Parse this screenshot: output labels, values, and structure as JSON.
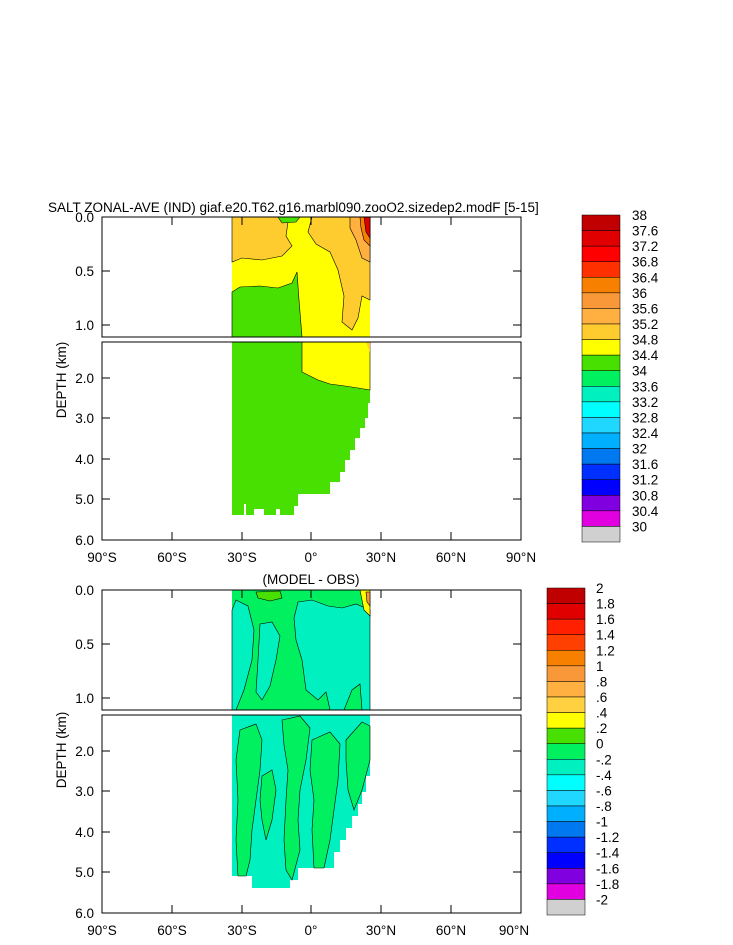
{
  "chart_data": [
    {
      "type": "heatmap",
      "title": "SALT ZONAL-AVE (IND) giaf.e20.T62.g16.marbl090.zooO2.sizedep2.modF [5-15]",
      "ylabel": "DEPTH (km)",
      "x_ticks": [
        "90°S",
        "60°S",
        "30°S",
        "0°",
        "30°N",
        "60°N",
        "90°N"
      ],
      "xlim": [
        -90,
        90
      ],
      "y_ticks_upper": [
        "0.0",
        "0.5",
        "1.0"
      ],
      "y_ticks_lower": [
        "2.0",
        "3.0",
        "4.0",
        "5.0",
        "6.0"
      ],
      "ylim_upper_km": [
        0,
        1.15
      ],
      "ylim_lower_km": [
        1.15,
        6.0
      ],
      "colorbar_labels": [
        "38",
        "37.6",
        "37.2",
        "36.8",
        "36.4",
        "36",
        "35.6",
        "35.2",
        "34.8",
        "34.4",
        "34",
        "33.6",
        "33.2",
        "32.8",
        "32.4",
        "32",
        "31.6",
        "31.2",
        "30.8",
        "30.4",
        "30"
      ]
    },
    {
      "type": "heatmap",
      "title": "(MODEL - OBS)",
      "ylabel": "DEPTH (km)",
      "x_ticks": [
        "90°S",
        "60°S",
        "30°S",
        "0°",
        "30°N",
        "60°N",
        "90°N"
      ],
      "xlim": [
        -90,
        90
      ],
      "y_ticks_upper": [
        "0.0",
        "0.5",
        "1.0"
      ],
      "y_ticks_lower": [
        "2.0",
        "3.0",
        "4.0",
        "5.0",
        "6.0"
      ],
      "ylim_upper_km": [
        0,
        1.15
      ],
      "ylim_lower_km": [
        1.15,
        6.0
      ],
      "colorbar_labels": [
        "2",
        "1.8",
        "1.6",
        "1.4",
        "1.2",
        "1",
        ".8",
        ".6",
        ".4",
        ".2",
        "0",
        "-.2",
        "-.4",
        "-.6",
        "-.8",
        "-1",
        "-1.2",
        "-1.4",
        "-1.6",
        "-1.8",
        "-2"
      ]
    }
  ],
  "colors": {
    "colorbar": [
      "#c00000",
      "#e00000",
      "#ff0000",
      "#ff3000",
      "#f88000",
      "#f89838",
      "#ffb040",
      "#ffcc30",
      "#ffff00",
      "#48e000",
      "#00f060",
      "#00f0c0",
      "#00ffff",
      "#20d8ff",
      "#00b0ff",
      "#0078f0",
      "#0030ff",
      "#0000ff",
      "#8000e0",
      "#e000e0",
      "#d0d0d0",
      "#707070"
    ],
    "diff_colorbar": [
      "#c00000",
      "#e00000",
      "#ff2000",
      "#ff4000",
      "#f88000",
      "#f89838",
      "#ffb040",
      "#ffd040",
      "#ffff00",
      "#48e000",
      "#00f060",
      "#00f0c0",
      "#00ffff",
      "#20d8ff",
      "#00b0ff",
      "#0078f0",
      "#0030ff",
      "#0000ff",
      "#8000e0",
      "#e000e0",
      "#d0d0d0",
      "#707070"
    ]
  }
}
